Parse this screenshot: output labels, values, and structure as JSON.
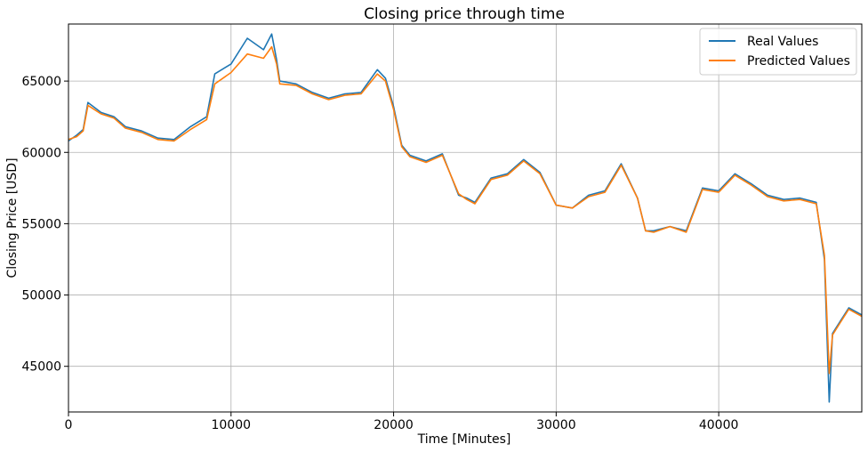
{
  "chart_data": {
    "type": "line",
    "title": "Closing price through time",
    "xlabel": "Time [Minutes]",
    "ylabel": "Closing Price [USD]",
    "xlim": [
      0,
      48800
    ],
    "ylim": [
      41800,
      69000
    ],
    "xticks": [
      0,
      10000,
      20000,
      30000,
      40000
    ],
    "yticks": [
      45000,
      50000,
      55000,
      60000,
      65000
    ],
    "grid": true,
    "legend_position": "top-right",
    "series": [
      {
        "name": "Real Values",
        "color": "#1f77b4",
        "x": [
          0,
          500,
          900,
          1200,
          2000,
          2800,
          3500,
          4500,
          5500,
          6500,
          7500,
          8500,
          9000,
          10000,
          11000,
          12000,
          12500,
          12800,
          13000,
          14000,
          15000,
          16000,
          17000,
          18000,
          19000,
          19500,
          20000,
          20500,
          21000,
          22000,
          23000,
          24000,
          24500,
          25000,
          26000,
          27000,
          28000,
          29000,
          30000,
          31000,
          32000,
          33000,
          34000,
          35000,
          35500,
          36000,
          37000,
          38000,
          39000,
          40000,
          41000,
          42000,
          43000,
          44000,
          45000,
          46000,
          46500,
          46800,
          47000,
          47500,
          48000,
          48800
        ],
        "values": [
          60800,
          61200,
          61600,
          63500,
          62800,
          62500,
          61800,
          61500,
          61000,
          60900,
          61800,
          62500,
          65500,
          66200,
          68000,
          67200,
          68300,
          66500,
          65000,
          64800,
          64200,
          63800,
          64100,
          64200,
          65800,
          65200,
          63200,
          60500,
          59800,
          59400,
          59900,
          57000,
          56800,
          56500,
          58200,
          58500,
          59500,
          58600,
          56300,
          56100,
          57000,
          57300,
          59200,
          56800,
          54500,
          54500,
          54800,
          54500,
          57500,
          57300,
          58500,
          57800,
          57000,
          56700,
          56800,
          56500,
          52500,
          42500,
          47300,
          48200,
          49100,
          48600
        ]
      },
      {
        "name": "Predicted Values",
        "color": "#ff7f0e",
        "x": [
          0,
          500,
          900,
          1200,
          2000,
          2800,
          3500,
          4500,
          5500,
          6500,
          7500,
          8500,
          9000,
          10000,
          11000,
          12000,
          12500,
          12800,
          13000,
          14000,
          15000,
          16000,
          17000,
          18000,
          19000,
          19500,
          20000,
          20500,
          21000,
          22000,
          23000,
          24000,
          24500,
          25000,
          26000,
          27000,
          28000,
          29000,
          30000,
          31000,
          32000,
          33000,
          34000,
          35000,
          35500,
          36000,
          37000,
          38000,
          39000,
          40000,
          41000,
          42000,
          43000,
          44000,
          45000,
          46000,
          46500,
          46800,
          47000,
          47500,
          48000,
          48800
        ],
        "values": [
          60900,
          61100,
          61500,
          63300,
          62700,
          62400,
          61700,
          61400,
          60900,
          60800,
          61600,
          62300,
          64800,
          65600,
          66900,
          66600,
          67400,
          66200,
          64800,
          64700,
          64100,
          63700,
          64000,
          64100,
          65500,
          65000,
          63000,
          60400,
          59700,
          59300,
          59800,
          57100,
          56700,
          56400,
          58100,
          58400,
          59400,
          58500,
          56300,
          56100,
          56900,
          57200,
          59100,
          56800,
          54500,
          54400,
          54800,
          54400,
          57400,
          57200,
          58400,
          57700,
          56900,
          56600,
          56700,
          56400,
          52800,
          44500,
          47200,
          48100,
          49000,
          48500
        ]
      }
    ]
  }
}
